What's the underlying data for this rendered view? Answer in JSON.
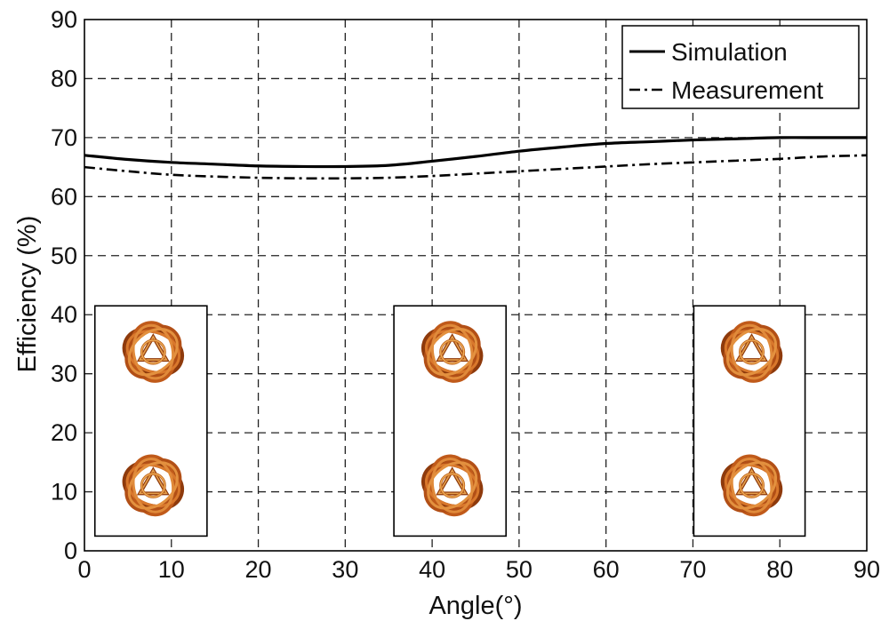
{
  "chart_data": {
    "type": "line",
    "xlabel": "Angle(°)",
    "ylabel": "Efficiency (%)",
    "xlim": [
      0,
      90
    ],
    "ylim": [
      0,
      90
    ],
    "xticks": [
      0,
      10,
      20,
      30,
      40,
      50,
      60,
      70,
      80,
      90
    ],
    "yticks": [
      0,
      10,
      20,
      30,
      40,
      50,
      60,
      70,
      80,
      90
    ],
    "grid": true,
    "legend_position": "top-right",
    "series": [
      {
        "name": "Simulation",
        "line_style": "solid",
        "color": "#000000",
        "x": [
          0,
          5,
          10,
          15,
          20,
          25,
          30,
          35,
          40,
          45,
          50,
          55,
          60,
          65,
          70,
          75,
          80,
          85,
          90
        ],
        "y": [
          67,
          66.3,
          65.8,
          65.5,
          65.2,
          65.1,
          65.1,
          65.3,
          66,
          66.8,
          67.7,
          68.4,
          69,
          69.3,
          69.6,
          69.8,
          70,
          70,
          70
        ]
      },
      {
        "name": "Measurement",
        "line_style": "dash-dot",
        "color": "#000000",
        "x": [
          0,
          5,
          10,
          15,
          20,
          25,
          30,
          35,
          40,
          45,
          50,
          55,
          60,
          65,
          70,
          75,
          80,
          85,
          90
        ],
        "y": [
          65,
          64.3,
          63.7,
          63.4,
          63.2,
          63.1,
          63.1,
          63.2,
          63.5,
          63.9,
          64.3,
          64.7,
          65.1,
          65.5,
          65.8,
          66.1,
          66.4,
          66.8,
          67
        ]
      }
    ],
    "insets": [
      {
        "x_start": 1.2,
        "x_end": 14.1,
        "y_bottom": 2.5,
        "y_top": 41.5,
        "content": "two-ring-structures"
      },
      {
        "x_start": 35.6,
        "x_end": 48.5,
        "y_bottom": 2.5,
        "y_top": 41.5,
        "content": "two-ring-structures"
      },
      {
        "x_start": 70.1,
        "x_end": 82.9,
        "y_bottom": 2.5,
        "y_top": 41.5,
        "content": "two-ring-structures"
      }
    ]
  }
}
